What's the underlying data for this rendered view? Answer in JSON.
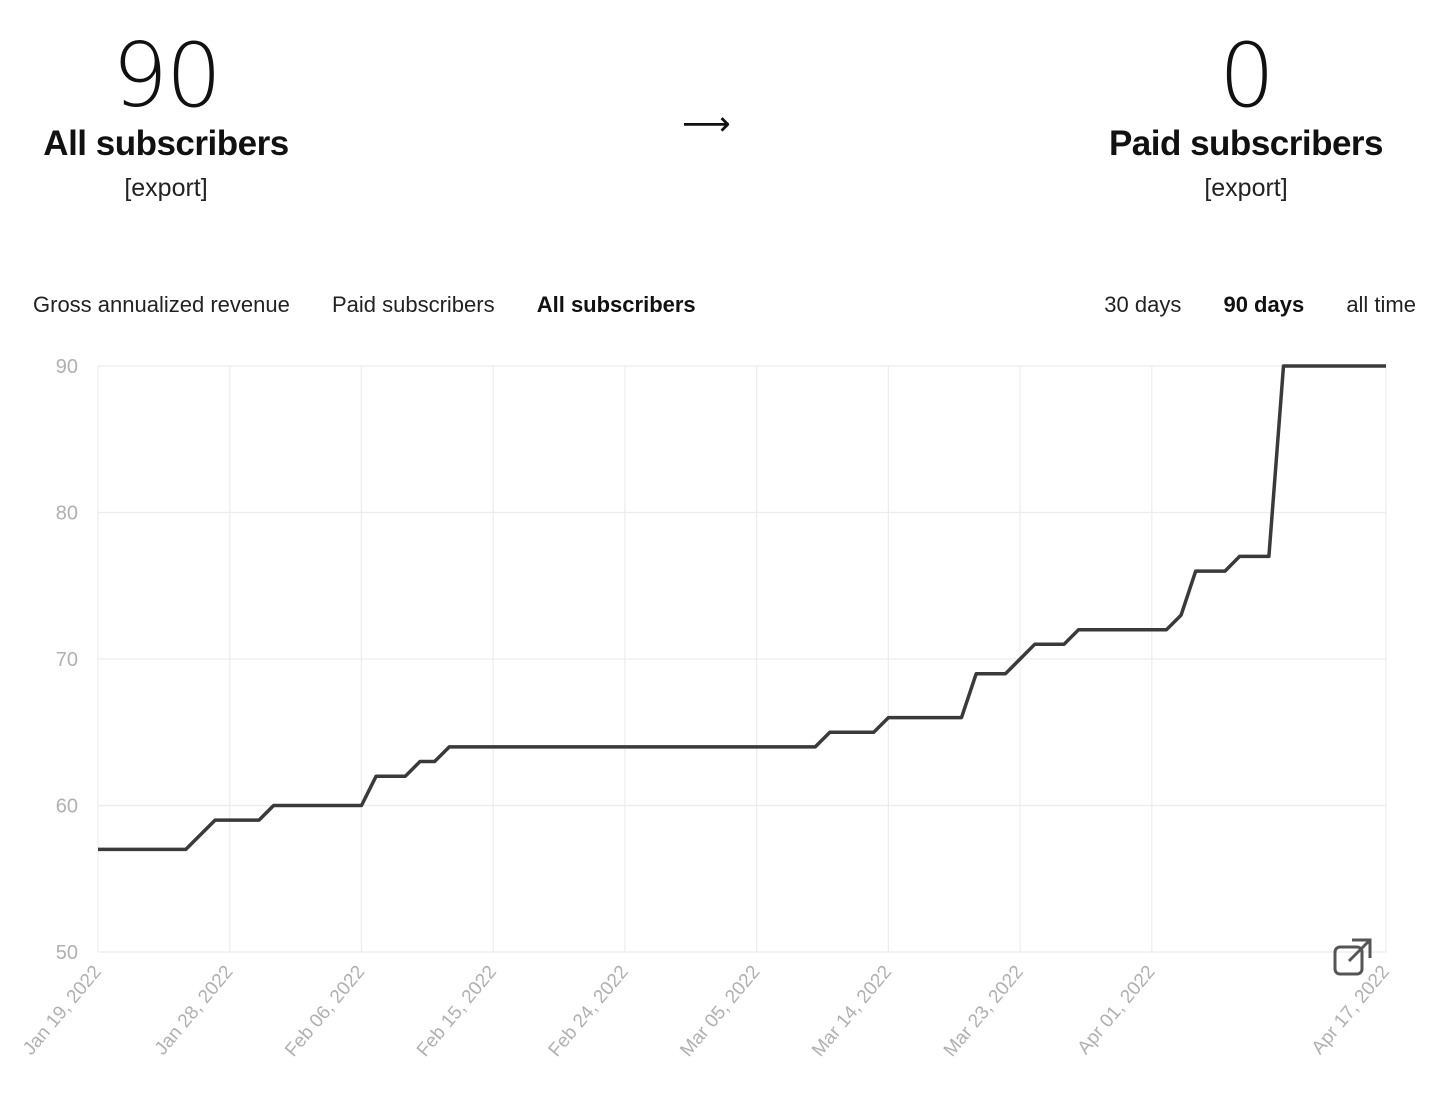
{
  "summary": {
    "left": {
      "number": "90",
      "title": "All subscribers",
      "export": "[export]"
    },
    "arrow": "⟶",
    "right": {
      "number": "0",
      "title": "Paid subscribers",
      "export": "[export]"
    }
  },
  "tabs": [
    {
      "label": "Gross annualized revenue",
      "active": false
    },
    {
      "label": "Paid subscribers",
      "active": false
    },
    {
      "label": "All subscribers",
      "active": true
    }
  ],
  "ranges": [
    {
      "label": "30 days",
      "active": false
    },
    {
      "label": "90 days",
      "active": true
    },
    {
      "label": "all time",
      "active": false
    }
  ],
  "colors": {
    "line": "#3a3a3a",
    "grid": "#ececec",
    "tick": "#b0b0b0"
  },
  "icons": {
    "open_external": "external-link-icon"
  },
  "chart_data": {
    "type": "line",
    "xlabel": "",
    "ylabel": "",
    "ylim": [
      50,
      90
    ],
    "yticks": [
      50,
      60,
      70,
      80,
      90
    ],
    "xlim": [
      "Jan 19, 2022",
      "Apr 17, 2022"
    ],
    "xtick_labels": [
      "Jan 19, 2022",
      "Jan 28, 2022",
      "Feb 06, 2022",
      "Feb 15, 2022",
      "Feb 24, 2022",
      "Mar 05, 2022",
      "Mar 14, 2022",
      "Mar 23, 2022",
      "Apr 01, 2022",
      "Apr 17, 2022"
    ],
    "grid": true,
    "series": [
      {
        "x": [
          "Jan 19, 2022",
          "Jan 25, 2022",
          "Jan 27, 2022",
          "Jan 30, 2022",
          "Jan 31, 2022",
          "Feb 06, 2022",
          "Feb 07, 2022",
          "Feb 09, 2022",
          "Feb 10, 2022",
          "Feb 11, 2022",
          "Feb 12, 2022",
          "Mar 09, 2022",
          "Mar 10, 2022",
          "Mar 13, 2022",
          "Mar 14, 2022",
          "Mar 19, 2022",
          "Mar 20, 2022",
          "Mar 22, 2022",
          "Mar 24, 2022",
          "Mar 26, 2022",
          "Mar 27, 2022",
          "Apr 01, 2022",
          "Apr 02, 2022",
          "Apr 03, 2022",
          "Apr 04, 2022",
          "Apr 06, 2022",
          "Apr 07, 2022",
          "Apr 09, 2022",
          "Apr 10, 2022",
          "Apr 11, 2022",
          "Apr 17, 2022"
        ],
        "y": [
          57,
          57,
          59,
          59,
          60,
          60,
          62,
          62,
          63,
          63,
          64,
          64,
          65,
          65,
          66,
          66,
          69,
          69,
          71,
          71,
          72,
          72,
          72,
          73,
          76,
          76,
          77,
          77,
          90,
          90,
          90
        ]
      }
    ]
  }
}
